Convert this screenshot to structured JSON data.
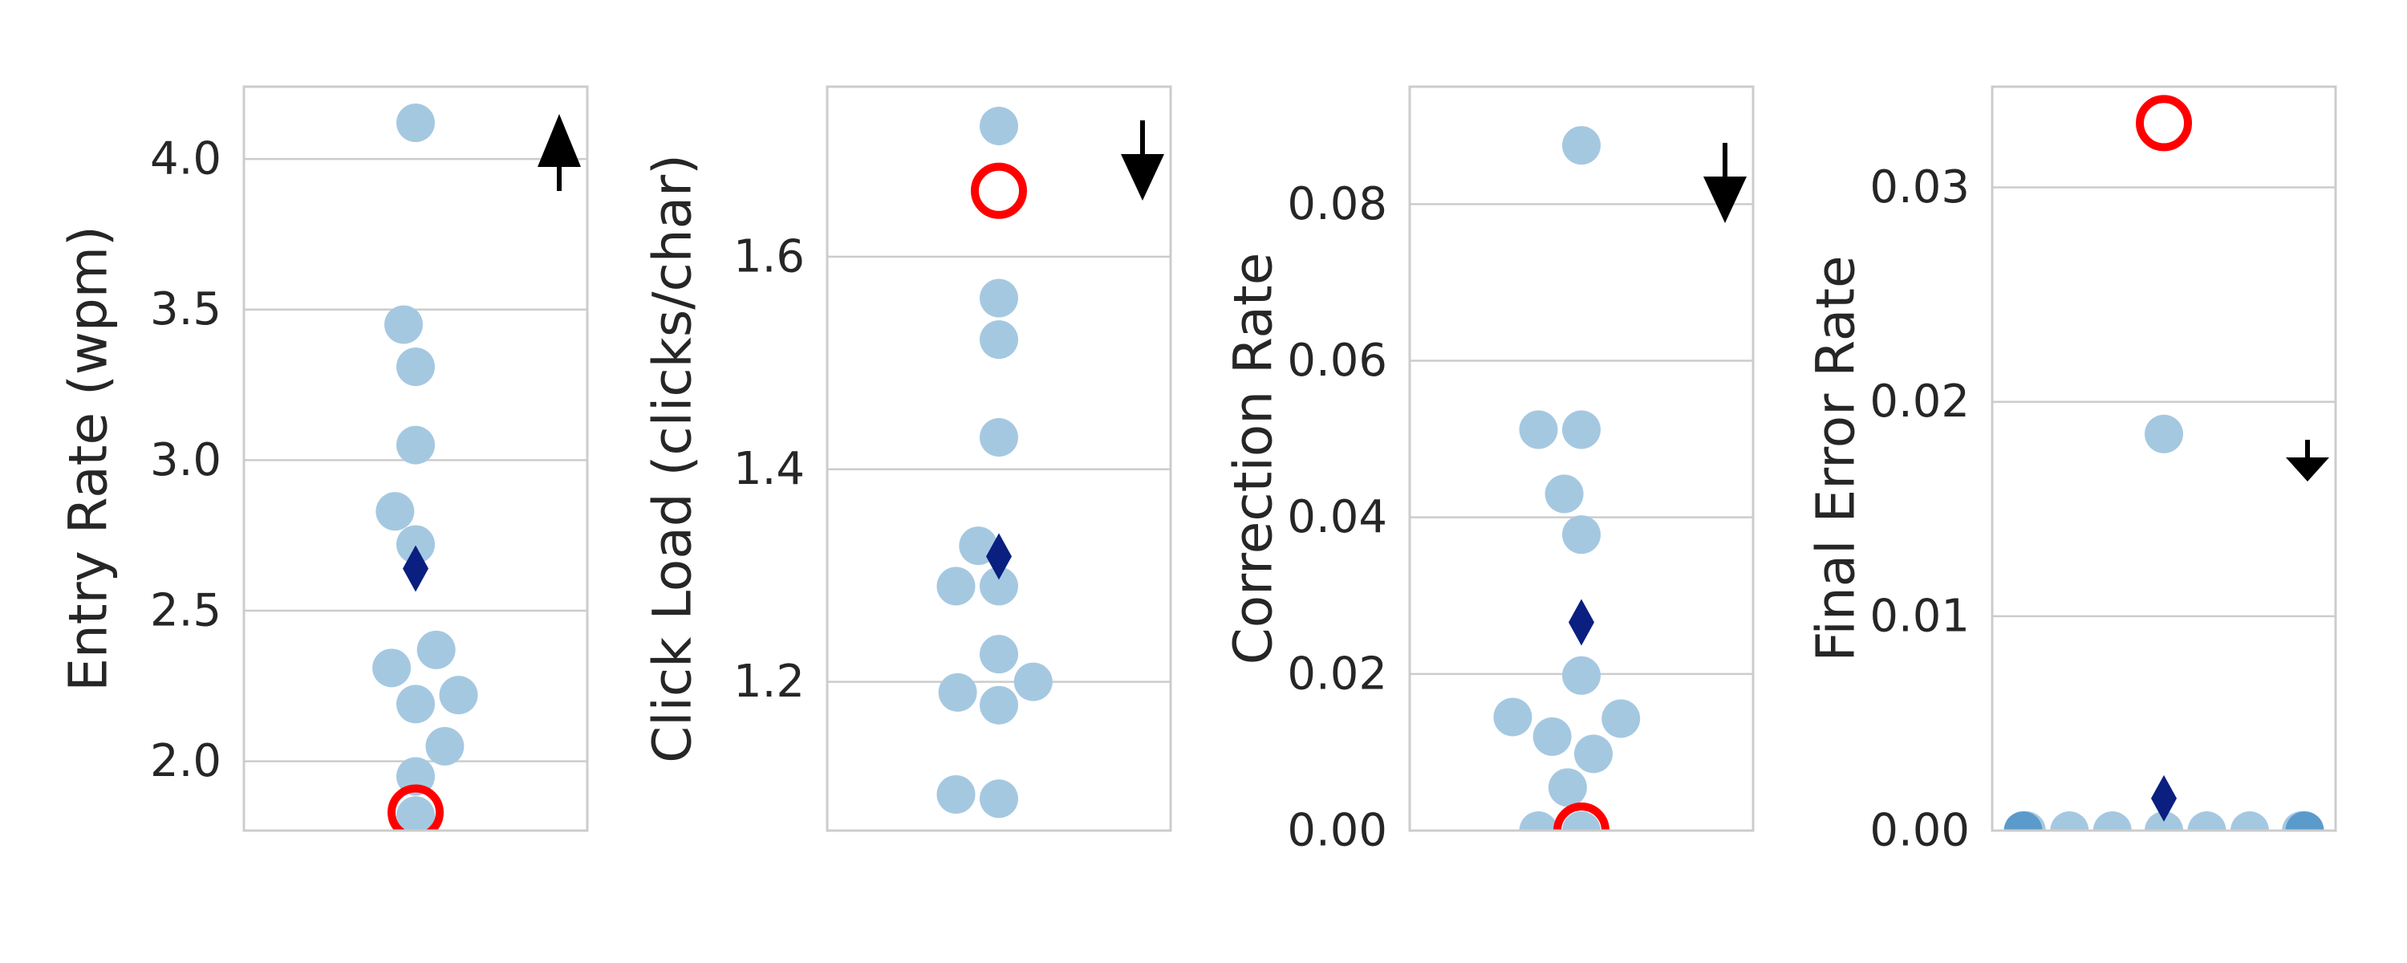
{
  "colors": {
    "point": "#a5c8e1",
    "point_dark": "#5b9bcb",
    "mean_marker": "#0a1f80",
    "highlight_ring": "#ff0000",
    "grid": "#cccccc",
    "frame": "#cccccc",
    "arrow": "#000000"
  },
  "chart_data": [
    {
      "type": "scatter",
      "ylabel": "Entry Rate (wpm)",
      "ylim": [
        1.77,
        4.24
      ],
      "yticks": [
        2.0,
        2.5,
        3.0,
        3.5,
        4.0
      ],
      "ytick_labels": [
        "2.0",
        "2.5",
        "3.0",
        "3.5",
        "4.0"
      ],
      "grid": true,
      "direction": "up",
      "points": [
        {
          "x": 0,
          "y": 4.12
        },
        {
          "x": -0.07,
          "y": 3.45
        },
        {
          "x": 0,
          "y": 3.31
        },
        {
          "x": 0,
          "y": 3.05
        },
        {
          "x": -0.12,
          "y": 2.83
        },
        {
          "x": 0,
          "y": 2.72
        },
        {
          "x": 0.12,
          "y": 2.37
        },
        {
          "x": -0.14,
          "y": 2.31
        },
        {
          "x": 0.25,
          "y": 2.22
        },
        {
          "x": 0,
          "y": 2.19
        },
        {
          "x": 0.17,
          "y": 2.05
        },
        {
          "x": 0,
          "y": 1.95
        },
        {
          "x": 0,
          "y": 1.82
        }
      ],
      "mean": 2.64,
      "highlight": 1.83
    },
    {
      "type": "scatter",
      "ylabel": "Click Load (clicks/char)",
      "ylim": [
        1.06,
        1.76
      ],
      "yticks": [
        1.2,
        1.4,
        1.6
      ],
      "ytick_labels": [
        "1.2",
        "1.4",
        "1.6"
      ],
      "grid": true,
      "direction": "down",
      "points": [
        {
          "x": 0,
          "y": 1.723
        },
        {
          "x": 0,
          "y": 1.561
        },
        {
          "x": 0,
          "y": 1.522
        },
        {
          "x": 0,
          "y": 1.43
        },
        {
          "x": -0.12,
          "y": 1.328
        },
        {
          "x": -0.25,
          "y": 1.29
        },
        {
          "x": 0,
          "y": 1.29
        },
        {
          "x": 0,
          "y": 1.226
        },
        {
          "x": 0.2,
          "y": 1.2
        },
        {
          "x": -0.24,
          "y": 1.19
        },
        {
          "x": 0,
          "y": 1.178
        },
        {
          "x": -0.25,
          "y": 1.094
        },
        {
          "x": 0,
          "y": 1.09
        }
      ],
      "mean": 1.318,
      "highlight": 1.662
    },
    {
      "type": "scatter",
      "ylabel": "Correction Rate",
      "ylim": [
        0,
        0.095
      ],
      "yticks": [
        0.0,
        0.02,
        0.04,
        0.06,
        0.08
      ],
      "ytick_labels": [
        "0.00",
        "0.02",
        "0.04",
        "0.06",
        "0.08"
      ],
      "grid": true,
      "direction": "down",
      "points": [
        {
          "x": 0,
          "y": 0.0875
        },
        {
          "x": -0.25,
          "y": 0.0512
        },
        {
          "x": 0,
          "y": 0.0512
        },
        {
          "x": -0.1,
          "y": 0.043
        },
        {
          "x": 0,
          "y": 0.0378
        },
        {
          "x": 0,
          "y": 0.0198
        },
        {
          "x": -0.4,
          "y": 0.0145
        },
        {
          "x": 0.23,
          "y": 0.0143
        },
        {
          "x": -0.17,
          "y": 0.012
        },
        {
          "x": 0.07,
          "y": 0.0098
        },
        {
          "x": -0.08,
          "y": 0.0055
        },
        {
          "x": -0.25,
          "y": 0.0
        },
        {
          "x": 0,
          "y": 0.0
        }
      ],
      "mean": 0.0266,
      "highlight": 0.0
    },
    {
      "type": "scatter",
      "ylabel": "Final Error Rate",
      "ylim": [
        0,
        0.0347
      ],
      "yticks": [
        0.0,
        0.01,
        0.02,
        0.03
      ],
      "ytick_labels": [
        "0.00",
        "0.01",
        "0.02",
        "0.03"
      ],
      "grid": true,
      "direction": "down",
      "points": [
        {
          "x": 0,
          "y": 0.0185
        },
        {
          "x": -0.8,
          "y": 0.0
        },
        {
          "x": -0.55,
          "y": 0.0
        },
        {
          "x": -0.3,
          "y": 0.0
        },
        {
          "x": 0,
          "y": 0.0
        },
        {
          "x": 0.25,
          "y": 0.0
        },
        {
          "x": 0.5,
          "y": 0.0
        },
        {
          "x": 0.8,
          "y": 0.0
        }
      ],
      "dark_points": [
        {
          "x": -0.82,
          "y": 0.0
        },
        {
          "x": 0.82,
          "y": 0.0
        }
      ],
      "mean": 0.0015,
      "highlight": 0.033
    }
  ]
}
